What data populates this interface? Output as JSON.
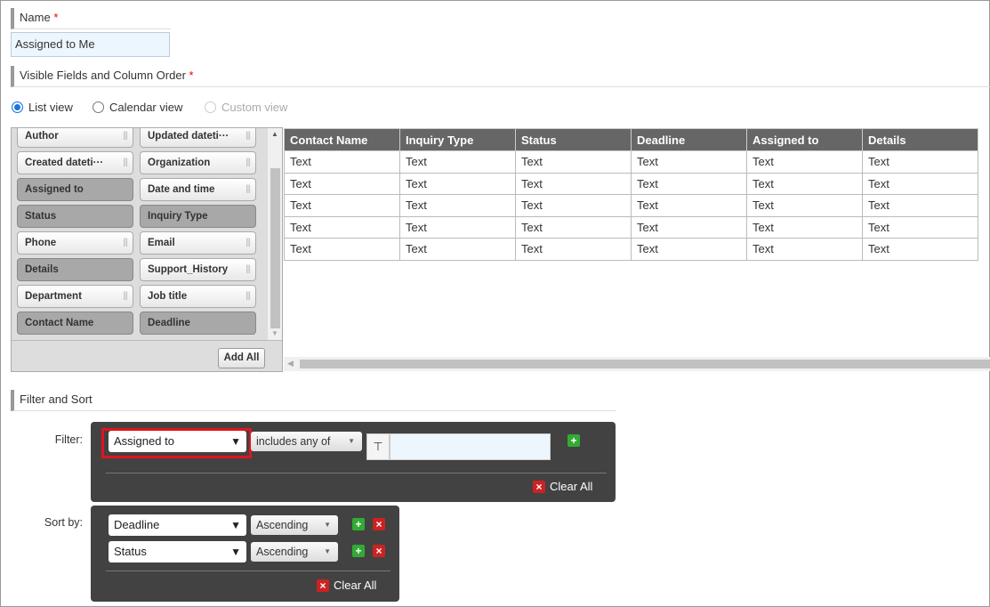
{
  "name": {
    "label": "Name",
    "required": "*",
    "value": "Assigned to Me"
  },
  "visible_fields": {
    "label": "Visible Fields and Column Order",
    "required": "*"
  },
  "views": [
    {
      "label": "List view",
      "checked": true
    },
    {
      "label": "Calendar view",
      "checked": false
    },
    {
      "label": "Custom view",
      "disabled": true
    }
  ],
  "fields": [
    {
      "label": "Author",
      "used": false
    },
    {
      "label": "Updated dateti···",
      "used": false
    },
    {
      "label": "Created dateti···",
      "used": false
    },
    {
      "label": "Organization",
      "used": false
    },
    {
      "label": "Assigned to",
      "used": true
    },
    {
      "label": "Date and time",
      "used": false
    },
    {
      "label": "Status",
      "used": true
    },
    {
      "label": "Inquiry Type",
      "used": true
    },
    {
      "label": "Phone",
      "used": false
    },
    {
      "label": "Email",
      "used": false
    },
    {
      "label": "Details",
      "used": true
    },
    {
      "label": "Support_History",
      "used": false
    },
    {
      "label": "Department",
      "used": false
    },
    {
      "label": "Job title",
      "used": false
    },
    {
      "label": "Contact Name",
      "used": true
    },
    {
      "label": "Deadline",
      "used": true
    }
  ],
  "add_all": "Add All",
  "table": {
    "columns": [
      "Contact Name",
      "Inquiry Type",
      "Status",
      "Deadline",
      "Assigned to",
      "Details"
    ],
    "rows": [
      [
        "Text",
        "Text",
        "Text",
        "Text",
        "Text",
        "Text"
      ],
      [
        "Text",
        "Text",
        "Text",
        "Text",
        "Text",
        "Text"
      ],
      [
        "Text",
        "Text",
        "Text",
        "Text",
        "Text",
        "Text"
      ],
      [
        "Text",
        "Text",
        "Text",
        "Text",
        "Text",
        "Text"
      ],
      [
        "Text",
        "Text",
        "Text",
        "Text",
        "Text",
        "Text"
      ]
    ]
  },
  "filter_sort": {
    "label": "Filter and Sort",
    "filter": {
      "label": "Filter:",
      "field": "Assigned to",
      "operator": "includes any of",
      "value": "",
      "clear_all": "Clear All"
    },
    "sort": {
      "label": "Sort by:",
      "rows": [
        {
          "field": "Deadline",
          "order": "Ascending"
        },
        {
          "field": "Status",
          "order": "Ascending"
        }
      ],
      "clear_all": "Clear All"
    }
  },
  "colors": {
    "highlight": "#e0141e",
    "panel": "#424242",
    "add": "#33aa33",
    "remove": "#cc2222"
  }
}
